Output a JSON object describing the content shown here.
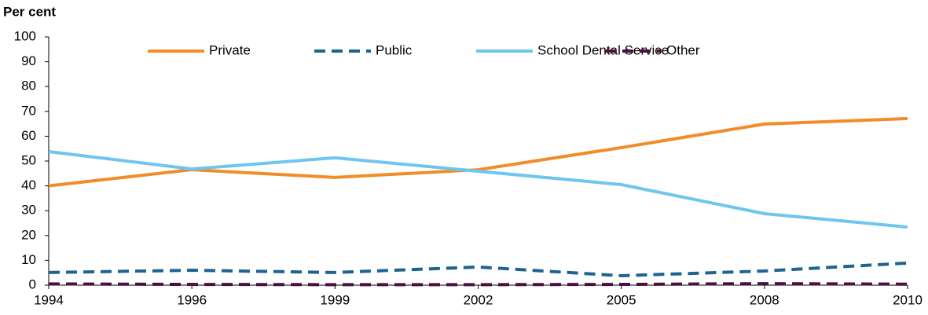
{
  "chart_data": {
    "type": "line",
    "y_label": "Per cent",
    "categories": [
      "1994",
      "1996",
      "1999",
      "2002",
      "2005",
      "2008",
      "2010"
    ],
    "series": [
      {
        "name": "Private",
        "color": "#f28c28",
        "dash": false,
        "values": [
          40.0,
          46.5,
          43.4,
          46.5,
          55.4,
          64.9,
          67.1
        ]
      },
      {
        "name": "Public",
        "color": "#1f6391",
        "dash": true,
        "values": [
          5.1,
          6.0,
          5.1,
          7.3,
          3.8,
          5.7,
          8.9
        ]
      },
      {
        "name": "School Dental Service",
        "color": "#6ec6ef",
        "dash": false,
        "values": [
          53.8,
          46.8,
          51.3,
          45.9,
          40.5,
          28.8,
          23.4
        ]
      },
      {
        "name": "Other",
        "color": "#4b1040",
        "dash": true,
        "values": [
          0.5,
          0.3,
          0.2,
          0.2,
          0.3,
          0.6,
          0.4
        ]
      }
    ],
    "ylim": [
      0,
      100
    ],
    "yticks": [
      0,
      10,
      20,
      30,
      40,
      50,
      60,
      70,
      80,
      90,
      100
    ],
    "legend": "top"
  }
}
